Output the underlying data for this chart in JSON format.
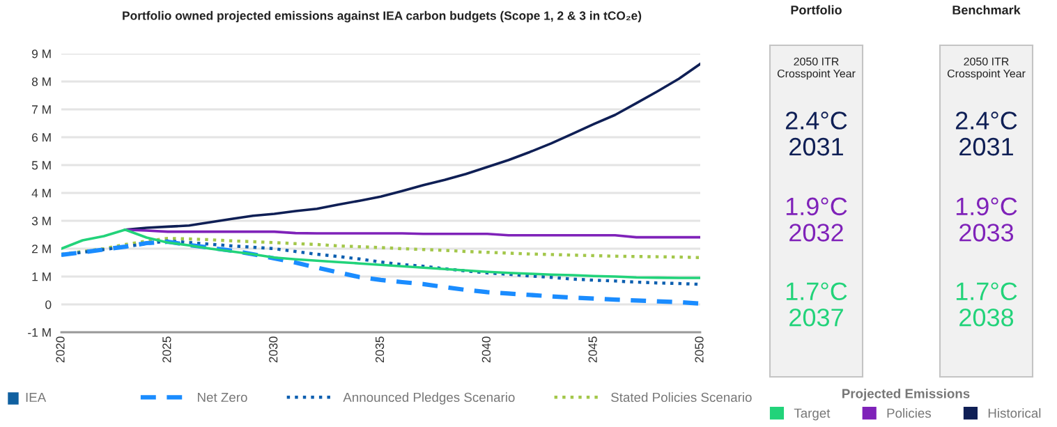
{
  "chart_data": [
    {
      "type": "line",
      "title": "Portfolio owned projected emissions against IEA carbon budgets (Scope 1, 2 & 3 in tCO₂e)",
      "x": [
        2020,
        2021,
        2022,
        2023,
        2024,
        2025,
        2026,
        2027,
        2028,
        2029,
        2030,
        2031,
        2032,
        2033,
        2034,
        2035,
        2036,
        2037,
        2038,
        2039,
        2040,
        2041,
        2042,
        2043,
        2044,
        2045,
        2046,
        2047,
        2048,
        2049,
        2050
      ],
      "series": [
        {
          "name": "Target",
          "color": "#22d37a",
          "line_style": "solid",
          "values": [
            2.0,
            2.3,
            2.45,
            2.68,
            2.4,
            2.22,
            2.12,
            2.0,
            1.9,
            1.8,
            1.68,
            1.62,
            1.57,
            1.52,
            1.47,
            1.42,
            1.37,
            1.32,
            1.27,
            1.22,
            1.17,
            1.13,
            1.1,
            1.07,
            1.05,
            1.02,
            1.0,
            0.97,
            0.96,
            0.95,
            0.95
          ]
        },
        {
          "name": "Policies",
          "color": "#7f22b9",
          "line_style": "solid",
          "values": [
            null,
            null,
            null,
            2.68,
            2.65,
            2.61,
            2.61,
            2.61,
            2.61,
            2.61,
            2.61,
            2.56,
            2.55,
            2.55,
            2.55,
            2.55,
            2.55,
            2.53,
            2.53,
            2.53,
            2.53,
            2.48,
            2.48,
            2.48,
            2.48,
            2.48,
            2.48,
            2.41,
            2.41,
            2.41,
            2.41
          ]
        },
        {
          "name": "Historical",
          "color": "#0f1f55",
          "line_style": "solid",
          "values": [
            null,
            null,
            null,
            2.68,
            2.75,
            2.79,
            2.83,
            2.95,
            3.07,
            3.18,
            3.25,
            3.35,
            3.43,
            3.58,
            3.72,
            3.87,
            4.07,
            4.28,
            4.47,
            4.68,
            4.93,
            5.18,
            5.47,
            5.78,
            6.12,
            6.47,
            6.8,
            7.22,
            7.65,
            8.1,
            8.63
          ]
        },
        {
          "name": "Net Zero",
          "color": "#1a8cff",
          "line_style": "dashed",
          "values": [
            1.78,
            1.87,
            1.97,
            2.07,
            2.2,
            2.25,
            2.13,
            2.03,
            1.93,
            1.8,
            1.65,
            1.5,
            1.32,
            1.15,
            0.98,
            0.88,
            0.8,
            0.73,
            0.62,
            0.52,
            0.44,
            0.39,
            0.34,
            0.29,
            0.24,
            0.21,
            0.17,
            0.14,
            0.11,
            0.08,
            0.03
          ]
        },
        {
          "name": "Announced Pledges Scenario",
          "color": "#0d5fb0",
          "line_style": "dotted",
          "values": [
            1.78,
            1.87,
            1.97,
            2.07,
            2.18,
            2.28,
            2.22,
            2.16,
            2.1,
            2.05,
            2.0,
            1.9,
            1.8,
            1.72,
            1.63,
            1.52,
            1.43,
            1.37,
            1.28,
            1.2,
            1.13,
            1.08,
            1.02,
            0.97,
            0.91,
            0.87,
            0.84,
            0.8,
            0.77,
            0.75,
            0.72
          ]
        },
        {
          "name": "Stated Policies Scenario",
          "color": "#a3c74a",
          "line_style": "dotted",
          "values": [
            1.8,
            1.9,
            2.0,
            2.15,
            2.27,
            2.37,
            2.35,
            2.32,
            2.28,
            2.25,
            2.22,
            2.18,
            2.15,
            2.1,
            2.07,
            2.04,
            2.0,
            1.97,
            1.94,
            1.9,
            1.87,
            1.84,
            1.81,
            1.79,
            1.77,
            1.75,
            1.73,
            1.72,
            1.71,
            1.7,
            1.68
          ]
        }
      ],
      "xlim": [
        2020,
        2050
      ],
      "xticks": [
        2020,
        2025,
        2030,
        2035,
        2040,
        2045,
        2050
      ],
      "ylim": [
        -1,
        9
      ],
      "yticks": [
        {
          "value": -1,
          "label": "-1 M"
        },
        0,
        {
          "value": 1,
          "label": "1 M"
        },
        {
          "value": 2,
          "label": "2 M"
        },
        {
          "value": 3,
          "label": "3 M"
        },
        {
          "value": 4,
          "label": "4 M"
        },
        {
          "value": 5,
          "label": "5 M"
        },
        {
          "value": 6,
          "label": "6 M"
        },
        {
          "value": 7,
          "label": "7 M"
        },
        {
          "value": 8,
          "label": "8 M"
        },
        {
          "value": 9,
          "label": "9 M"
        }
      ],
      "grid": "y",
      "legend": "bottom",
      "legend_title": "Projected Emissions",
      "marker": "none",
      "annotations": [
        "IEA"
      ]
    },
    {
      "type": "other",
      "title": "Portfolio",
      "annotations": [
        "2050 ITR\nCrosspoint Year",
        "2.4°C\n2031",
        "1.9°C\n2032",
        "1.7°C\n2037"
      ],
      "colors": [
        "#222222",
        "#0f1f55",
        "#7f22b9",
        "#22d37a"
      ]
    },
    {
      "type": "other",
      "title": "Benchmark",
      "annotations": [
        "2050 ITR\nCrosspoint Year",
        "2.4°C\n2031",
        "1.9°C\n2033",
        "1.7°C\n2038"
      ],
      "colors": [
        "#222222",
        "#0f1f55",
        "#7f22b9",
        "#22d37a"
      ]
    }
  ]
}
